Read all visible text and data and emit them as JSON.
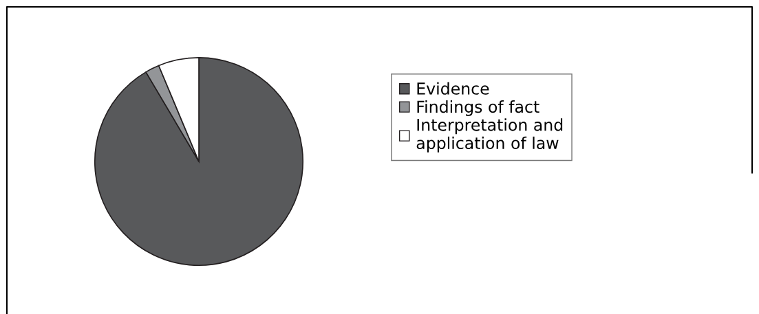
{
  "chart_data": {
    "type": "pie",
    "categories": [
      "Evidence",
      "Findings of fact",
      "Interpretation and\napplication of law"
    ],
    "values": [
      91.5,
      2.2,
      6.3
    ],
    "colors": [
      "#58595b",
      "#939598",
      "#ffffff"
    ],
    "legend": "right"
  }
}
